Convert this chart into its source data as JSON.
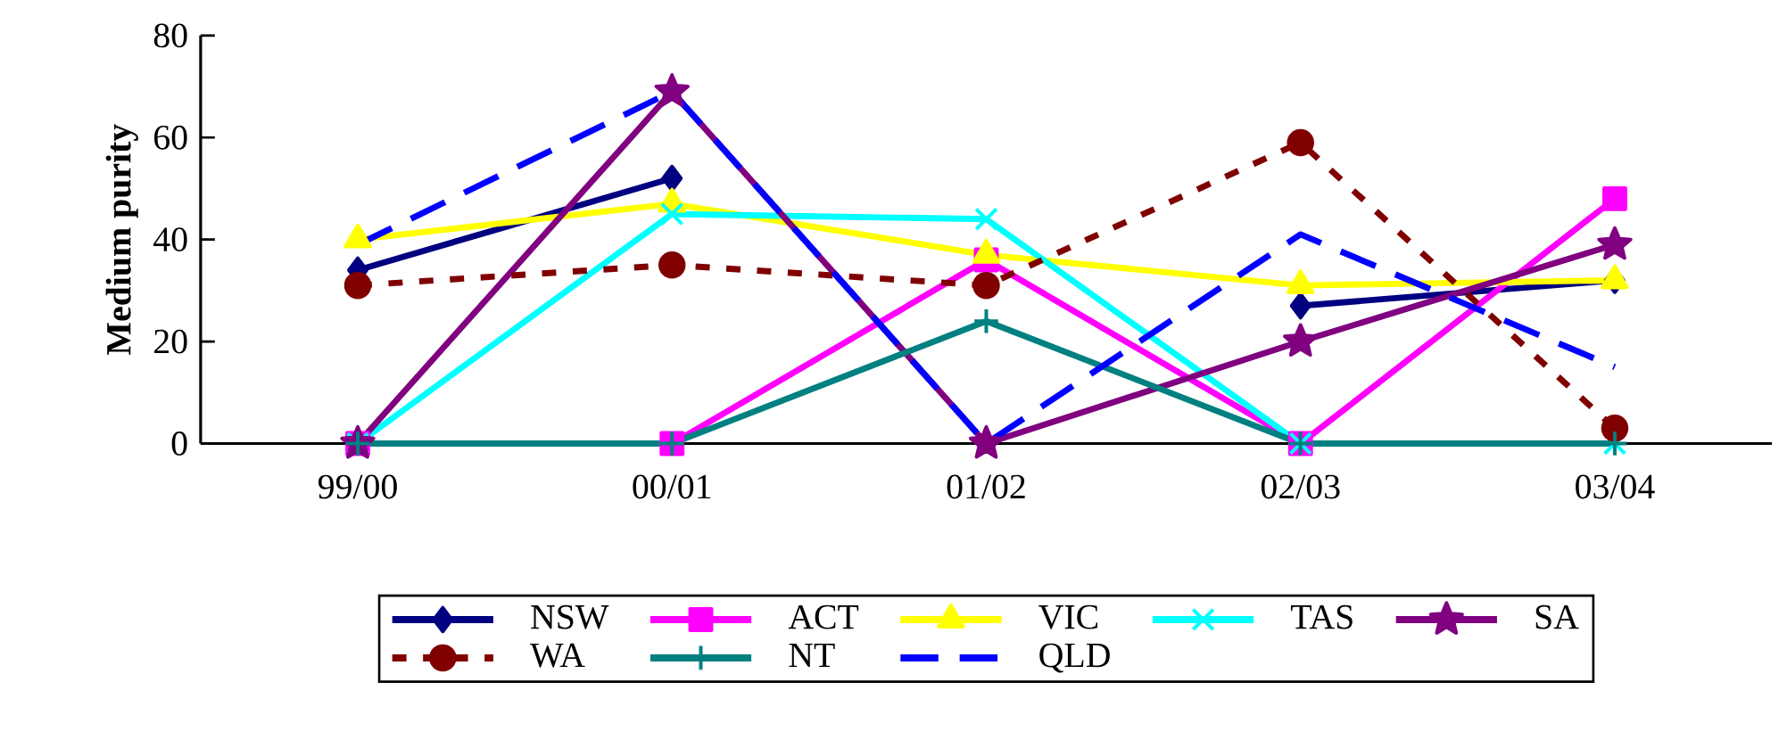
{
  "chart_data": {
    "type": "line",
    "ylabel": "Medium purity",
    "categories": [
      "99/00",
      "00/01",
      "01/02",
      "02/03",
      "03/04"
    ],
    "ylim": [
      0,
      80
    ],
    "yticks": [
      0,
      20,
      40,
      60,
      80
    ],
    "grid": false,
    "legend": "bottom",
    "series": [
      {
        "name": "NSW",
        "color": "#000080",
        "marker": "diamond",
        "line_style": "solid",
        "values": [
          34,
          52,
          null,
          27,
          32
        ]
      },
      {
        "name": "ACT",
        "color": "#ff00ff",
        "marker": "square",
        "line_style": "solid",
        "values": [
          0,
          0,
          36,
          0,
          48
        ]
      },
      {
        "name": "VIC",
        "color": "#ffff00",
        "marker": "triangle",
        "line_style": "solid",
        "values": [
          40,
          47,
          37,
          31,
          32
        ]
      },
      {
        "name": "TAS",
        "color": "#00ffff",
        "marker": "cross",
        "line_style": "solid",
        "values": [
          0,
          45,
          44,
          0,
          0
        ]
      },
      {
        "name": "SA",
        "color": "#800080",
        "marker": "star",
        "line_style": "solid",
        "values": [
          0,
          69,
          0,
          20,
          39
        ]
      },
      {
        "name": "WA",
        "color": "#800000",
        "marker": "circle",
        "line_style": "dotted",
        "values": [
          31,
          35,
          31,
          59,
          3
        ]
      },
      {
        "name": "NT",
        "color": "#008080",
        "marker": "plus",
        "line_style": "solid",
        "values": [
          0,
          0,
          24,
          0,
          0
        ]
      },
      {
        "name": "QLD",
        "color": "#0000ff",
        "marker": "none",
        "line_style": "dashed",
        "values": [
          39,
          69,
          0,
          41,
          15
        ]
      }
    ]
  }
}
